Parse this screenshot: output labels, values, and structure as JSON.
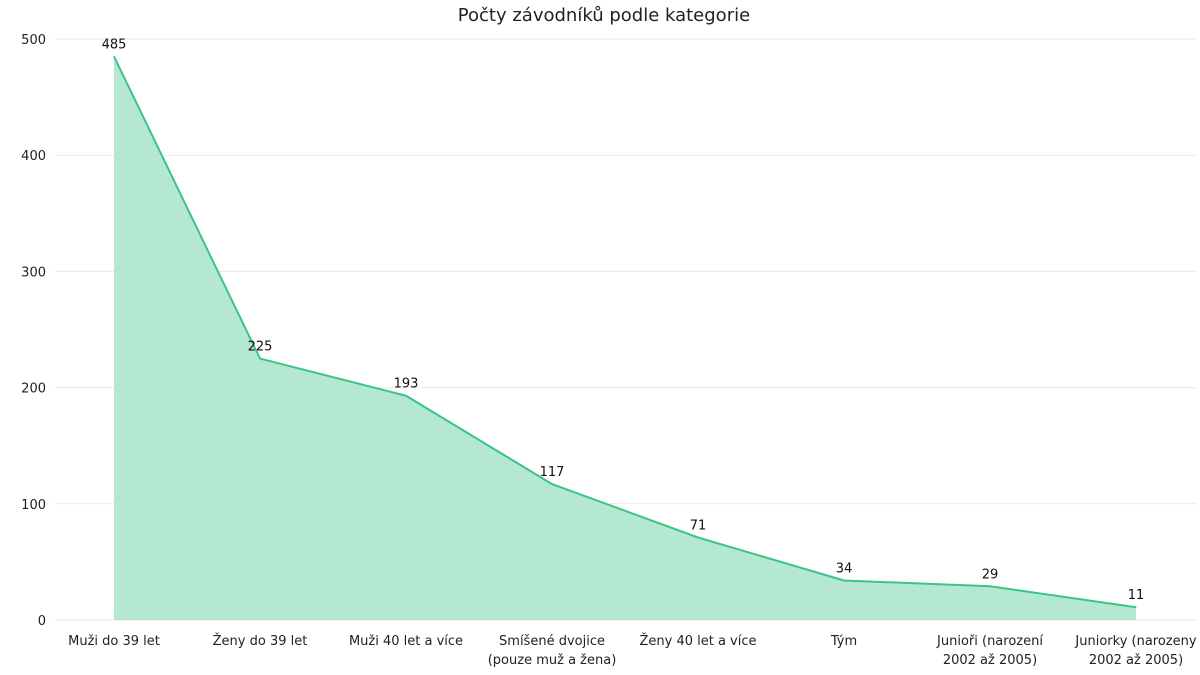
{
  "chart_data": {
    "type": "area",
    "title": "Počty závodníků podle kategorie",
    "xlabel": "",
    "ylabel": "",
    "ylim": [
      0,
      500
    ],
    "yticks": [
      0,
      100,
      200,
      300,
      400,
      500
    ],
    "grid": true,
    "legend": "none",
    "categories": [
      [
        "Muži do 39 let"
      ],
      [
        "Ženy do 39 let"
      ],
      [
        "Muži 40 let a více"
      ],
      [
        "Smíšené dvojice",
        "(pouze muž a žena)"
      ],
      [
        "Ženy 40 let a více"
      ],
      [
        "Tým"
      ],
      [
        "Junioři (narození",
        "2002 až 2005)"
      ],
      [
        "Juniorky (narozeny",
        "2002 až 2005)"
      ]
    ],
    "series": [
      {
        "values": [
          485,
          225,
          193,
          117,
          71,
          34,
          29,
          11
        ]
      }
    ],
    "colors": {
      "line": "#3cc487",
      "fill": "#b4e8d2"
    }
  }
}
